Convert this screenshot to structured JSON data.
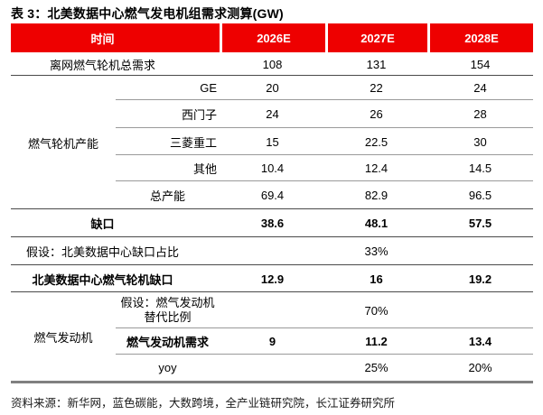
{
  "title": "表 3：北美数据中心燃气发电机组需求测算(GW)",
  "colors": {
    "header_bg": "#ee0000",
    "header_text": "#ffffff"
  },
  "header": {
    "time": "时间",
    "y1": "2026E",
    "y2": "2027E",
    "y3": "2028E"
  },
  "groups": {
    "turbine": "燃气轮机产能",
    "engine": "燃气发动机"
  },
  "rows": [
    {
      "label": "离网燃气轮机总需求",
      "v1": "108",
      "v2": "131",
      "v3": "154"
    },
    {
      "label": "GE",
      "v1": "20",
      "v2": "22",
      "v3": "24"
    },
    {
      "label": "西门子",
      "v1": "24",
      "v2": "26",
      "v3": "28"
    },
    {
      "label": "三菱重工",
      "v1": "15",
      "v2": "22.5",
      "v3": "30"
    },
    {
      "label": "其他",
      "v1": "10.4",
      "v2": "12.4",
      "v3": "14.5"
    },
    {
      "label": "总产能",
      "v1": "69.4",
      "v2": "82.9",
      "v3": "96.5"
    },
    {
      "label": "缺口",
      "v1": "38.6",
      "v2": "48.1",
      "v3": "57.5"
    },
    {
      "label": "假设：北美数据中心缺口占比",
      "v2": "33%"
    },
    {
      "label": "北美数据中心燃气轮机缺口",
      "v1": "12.9",
      "v2": "16",
      "v3": "19.2"
    },
    {
      "label_line1": "假设：燃气发动机",
      "label_line2": "替代比例",
      "v2": "70%"
    },
    {
      "label": "燃气发动机需求",
      "v1": "9",
      "v2": "11.2",
      "v3": "13.4"
    },
    {
      "label": "yoy",
      "v2": "25%",
      "v3": "20%"
    }
  ],
  "source": "资料来源：新华网，蓝色碳能，大数跨境，全产业链研究院，长江证券研究所"
}
